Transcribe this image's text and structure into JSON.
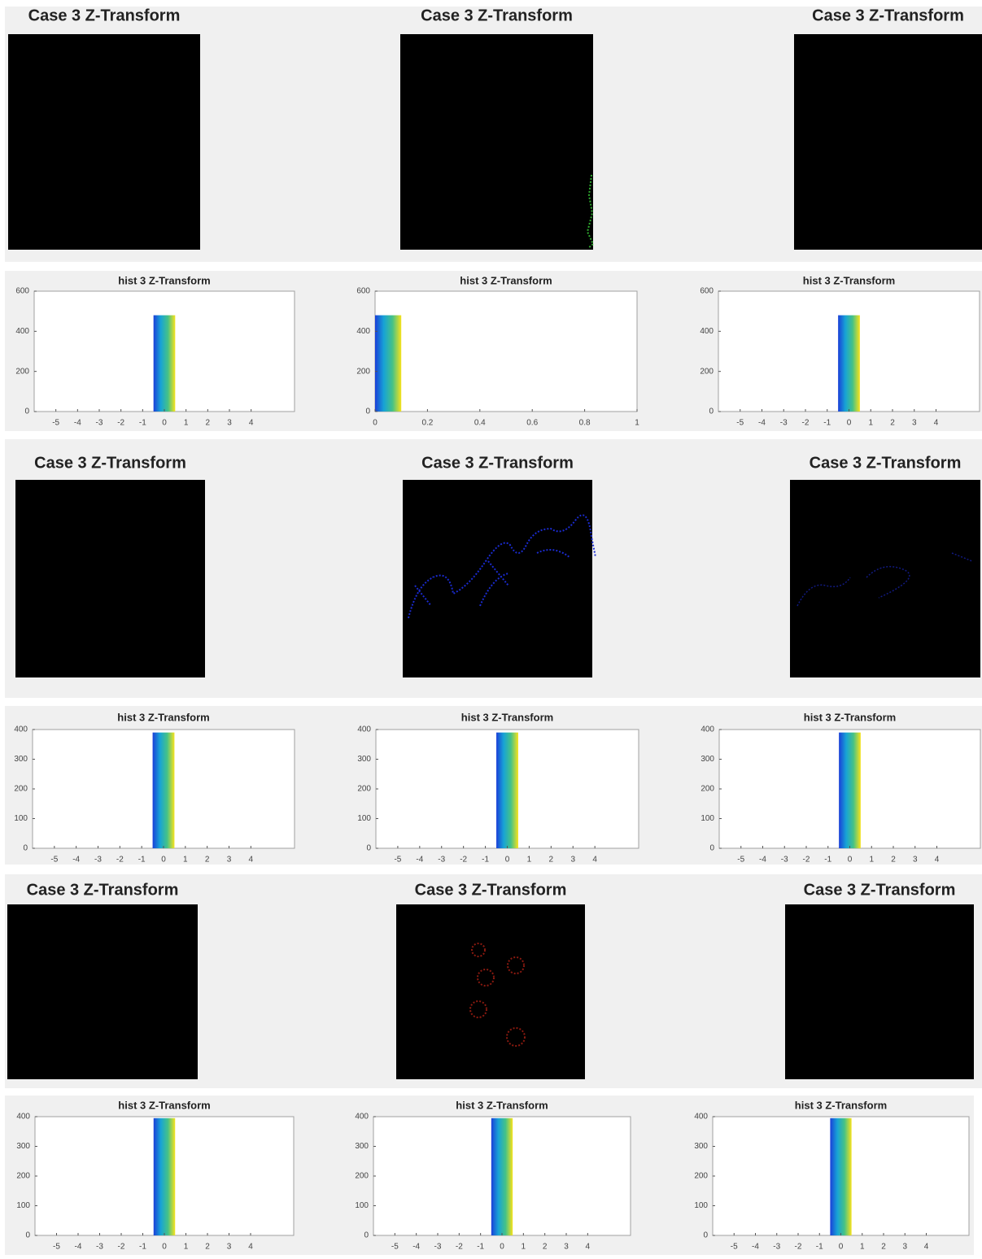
{
  "chart_data": [
    {
      "type": "image",
      "title": "Case 3 Z-Transform"
    },
    {
      "type": "image",
      "title": "Case 3 Z-Transform"
    },
    {
      "type": "image",
      "title": "Case 3 Z-Transform"
    },
    {
      "type": "histogram",
      "title": "hist 3 Z-Transform",
      "bins": [
        -5.5,
        -4.5,
        -3.5,
        -2.5,
        -1.5,
        -0.5,
        0.5,
        1.5,
        2.5,
        3.5,
        4.5,
        5.5
      ],
      "values": [
        0,
        0,
        0,
        0,
        0,
        480,
        0,
        0,
        0,
        0,
        0
      ],
      "xlim": [
        -6,
        6
      ],
      "xticks": [
        -5,
        -4,
        -3,
        -2,
        -1,
        0,
        1,
        2,
        3,
        4
      ],
      "ylim": [
        0,
        600
      ],
      "yticks": [
        0,
        200,
        400,
        600
      ],
      "colors": [
        "#1a3fd8",
        "#17a3d6",
        "#45c287",
        "#f7e21c"
      ]
    },
    {
      "type": "histogram",
      "title": "hist 3 Z-Transform",
      "bins": [
        0,
        0.1,
        0.2,
        0.3,
        0.4,
        0.5,
        0.6,
        0.7,
        0.8,
        0.9,
        1
      ],
      "values": [
        480,
        0,
        0,
        0,
        0,
        0,
        0,
        0,
        0,
        0
      ],
      "xlim": [
        0,
        1
      ],
      "xticks": [
        0,
        0.2,
        0.4,
        0.6,
        0.8,
        1
      ],
      "ylim": [
        0,
        600
      ],
      "yticks": [
        0,
        200,
        400,
        600
      ],
      "colors": [
        "#1a3fd8",
        "#17a3d6",
        "#45c287",
        "#f7e21c"
      ]
    },
    {
      "type": "histogram",
      "title": "hist 3 Z-Transform",
      "bins": [
        -5.5,
        -4.5,
        -3.5,
        -2.5,
        -1.5,
        -0.5,
        0.5,
        1.5,
        2.5,
        3.5,
        4.5,
        5.5
      ],
      "values": [
        0,
        0,
        0,
        0,
        0,
        480,
        0,
        0,
        0,
        0,
        0
      ],
      "xlim": [
        -6,
        6
      ],
      "xticks": [
        -5,
        -4,
        -3,
        -2,
        -1,
        0,
        1,
        2,
        3,
        4
      ],
      "ylim": [
        0,
        600
      ],
      "yticks": [
        0,
        200,
        400,
        600
      ],
      "colors": [
        "#1a3fd8",
        "#17a3d6",
        "#45c287",
        "#f7e21c"
      ]
    },
    {
      "type": "image",
      "title": "Case 3 Z-Transform"
    },
    {
      "type": "image",
      "title": "Case 3 Z-Transform"
    },
    {
      "type": "image",
      "title": "Case 3 Z-Transform"
    },
    {
      "type": "histogram",
      "title": "hist 3 Z-Transform",
      "bins": [
        -5.5,
        -4.5,
        -3.5,
        -2.5,
        -1.5,
        -0.5,
        0.5,
        1.5,
        2.5,
        3.5,
        4.5,
        5.5
      ],
      "values": [
        0,
        0,
        0,
        0,
        0,
        390,
        0,
        0,
        0,
        0,
        0
      ],
      "xlim": [
        -6,
        6
      ],
      "xticks": [
        -5,
        -4,
        -3,
        -2,
        -1,
        0,
        1,
        2,
        3,
        4
      ],
      "ylim": [
        0,
        400
      ],
      "yticks": [
        0,
        100,
        200,
        300,
        400
      ],
      "colors": [
        "#1a3fd8",
        "#17a3d6",
        "#45c287",
        "#f7e21c"
      ]
    },
    {
      "type": "histogram",
      "title": "hist 3 Z-Transform",
      "bins": [
        -5.5,
        -4.5,
        -3.5,
        -2.5,
        -1.5,
        -0.5,
        0.5,
        1.5,
        2.5,
        3.5,
        4.5,
        5.5
      ],
      "values": [
        0,
        0,
        0,
        0,
        0,
        390,
        0,
        0,
        0,
        0,
        0
      ],
      "xlim": [
        -6,
        6
      ],
      "xticks": [
        -5,
        -4,
        -3,
        -2,
        -1,
        0,
        1,
        2,
        3,
        4
      ],
      "ylim": [
        0,
        400
      ],
      "yticks": [
        0,
        100,
        200,
        300,
        400
      ],
      "colors": [
        "#1a3fd8",
        "#17a3d6",
        "#45c287",
        "#f7e21c"
      ]
    },
    {
      "type": "histogram",
      "title": "hist 3 Z-Transform",
      "bins": [
        -5.5,
        -4.5,
        -3.5,
        -2.5,
        -1.5,
        -0.5,
        0.5,
        1.5,
        2.5,
        3.5,
        4.5,
        5.5
      ],
      "values": [
        0,
        0,
        0,
        0,
        0,
        390,
        0,
        0,
        0,
        0,
        0
      ],
      "xlim": [
        -6,
        6
      ],
      "xticks": [
        -5,
        -4,
        -3,
        -2,
        -1,
        0,
        1,
        2,
        3,
        4
      ],
      "ylim": [
        0,
        400
      ],
      "yticks": [
        0,
        100,
        200,
        300,
        400
      ],
      "colors": [
        "#1a3fd8",
        "#17a3d6",
        "#45c287",
        "#f7e21c"
      ]
    },
    {
      "type": "image",
      "title": "Case 3 Z-Transform"
    },
    {
      "type": "image",
      "title": "Case 3 Z-Transform"
    },
    {
      "type": "image",
      "title": "Case 3 Z-Transform"
    },
    {
      "type": "histogram",
      "title": "hist 3 Z-Transform",
      "bins": [
        -5.5,
        -4.5,
        -3.5,
        -2.5,
        -1.5,
        -0.5,
        0.5,
        1.5,
        2.5,
        3.5,
        4.5,
        5.5
      ],
      "values": [
        0,
        0,
        0,
        0,
        0,
        395,
        0,
        0,
        0,
        0,
        0
      ],
      "xlim": [
        -6,
        6
      ],
      "xticks": [
        -5,
        -4,
        -3,
        -2,
        -1,
        0,
        1,
        2,
        3,
        4
      ],
      "ylim": [
        0,
        400
      ],
      "yticks": [
        0,
        100,
        200,
        300,
        400
      ],
      "colors": [
        "#1a3fd8",
        "#17a3d6",
        "#45c287",
        "#f7e21c"
      ]
    },
    {
      "type": "histogram",
      "title": "hist 3 Z-Transform",
      "bins": [
        -5.5,
        -4.5,
        -3.5,
        -2.5,
        -1.5,
        -0.5,
        0.5,
        1.5,
        2.5,
        3.5,
        4.5,
        5.5
      ],
      "values": [
        0,
        0,
        0,
        0,
        0,
        395,
        0,
        0,
        0,
        0,
        0
      ],
      "xlim": [
        -6,
        6
      ],
      "xticks": [
        -5,
        -4,
        -3,
        -2,
        -1,
        0,
        1,
        2,
        3,
        4
      ],
      "ylim": [
        0,
        400
      ],
      "yticks": [
        0,
        100,
        200,
        300,
        400
      ],
      "colors": [
        "#1a3fd8",
        "#17a3d6",
        "#45c287",
        "#f7e21c"
      ]
    },
    {
      "type": "histogram",
      "title": "hist 3 Z-Transform",
      "bins": [
        -5.5,
        -4.5,
        -3.5,
        -2.5,
        -1.5,
        -0.5,
        0.5,
        1.5,
        2.5,
        3.5,
        4.5,
        5.5
      ],
      "values": [
        0,
        0,
        0,
        0,
        0,
        395,
        0,
        0,
        0,
        0,
        0
      ],
      "xlim": [
        -6,
        6
      ],
      "xticks": [
        -5,
        -4,
        -3,
        -2,
        -1,
        0,
        1,
        2,
        3,
        4
      ],
      "ylim": [
        0,
        400
      ],
      "yticks": [
        0,
        100,
        200,
        300,
        400
      ],
      "colors": [
        "#1a3fd8",
        "#17a3d6",
        "#45c287",
        "#f7e21c"
      ]
    }
  ]
}
